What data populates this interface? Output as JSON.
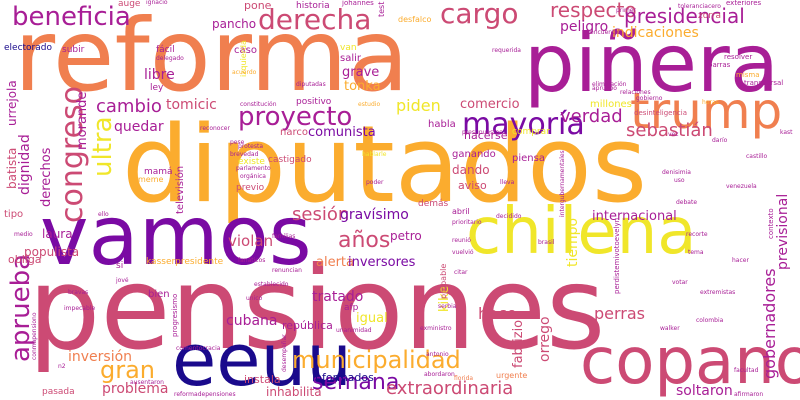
{
  "palette": {
    "dark_blue": "#1a0a8c",
    "purple": "#7a0aa3",
    "magenta": "#a81e96",
    "pink": "#cc4a74",
    "orange": "#f07f4f",
    "amber": "#fbac2e",
    "yellow": "#f0e62a"
  },
  "words": [
    {
      "text": "pensiones"
    },
    {
      "text": "diputados"
    },
    {
      "text": "reforma"
    },
    {
      "text": "vamos"
    },
    {
      "text": "piñera"
    },
    {
      "text": "chilena"
    },
    {
      "text": "copano"
    },
    {
      "text": "eeuu"
    },
    {
      "text": "trump"
    },
    {
      "text": "beneficia"
    },
    {
      "text": "derecha"
    },
    {
      "text": "cargo"
    },
    {
      "text": "respecto"
    },
    {
      "text": "presidencial"
    },
    {
      "text": "proyecto"
    },
    {
      "text": "mayoría"
    },
    {
      "text": "congreso"
    },
    {
      "text": "aprueba"
    },
    {
      "text": "ultra"
    },
    {
      "text": "municipalidad"
    },
    {
      "text": "semana"
    },
    {
      "text": "gran"
    },
    {
      "text": "años"
    },
    {
      "text": "sebastián"
    },
    {
      "text": "verdad"
    },
    {
      "text": "indicaciones"
    },
    {
      "text": "peligro"
    },
    {
      "text": "cambio"
    },
    {
      "text": "tomicic"
    },
    {
      "text": "piden"
    },
    {
      "text": "comercio"
    },
    {
      "text": "quedar"
    },
    {
      "text": "comunista"
    },
    {
      "text": "sesión"
    },
    {
      "text": "gravísimo"
    },
    {
      "text": "violan"
    },
    {
      "text": "alerta"
    },
    {
      "text": "inversores"
    },
    {
      "text": "tratado"
    },
    {
      "text": "cubana"
    },
    {
      "text": "hace"
    },
    {
      "text": "perras"
    },
    {
      "text": "extraordinaria"
    },
    {
      "text": "soltaron"
    },
    {
      "text": "internacional"
    },
    {
      "text": "gobernadores"
    },
    {
      "text": "previsional"
    },
    {
      "text": "tiempo"
    },
    {
      "text": "orrego"
    },
    {
      "text": "fabrizio"
    },
    {
      "text": "igual"
    },
    {
      "text": "inversión"
    },
    {
      "text": "problema"
    },
    {
      "text": "informados"
    },
    {
      "text": "inhabilita"
    },
    {
      "text": "dignidad"
    },
    {
      "text": "derechos"
    },
    {
      "text": "morande"
    },
    {
      "text": "batista"
    },
    {
      "text": "laura"
    },
    {
      "text": "urrejola"
    },
    {
      "text": "libre"
    },
    {
      "text": "grave"
    },
    {
      "text": "tonka"
    },
    {
      "text": "pancho"
    },
    {
      "text": "pone"
    },
    {
      "text": "historia"
    },
    {
      "text": "fácil"
    },
    {
      "text": "subir"
    },
    {
      "text": "electorado"
    },
    {
      "text": "auge"
    },
    {
      "text": "populista"
    },
    {
      "text": "obliga"
    },
    {
      "text": "kike"
    },
    {
      "text": "petro"
    },
    {
      "text": "dando"
    },
    {
      "text": "aviso"
    },
    {
      "text": "hacerse"
    },
    {
      "text": "habla"
    },
    {
      "text": "narco"
    },
    {
      "text": "televisión"
    },
    {
      "text": "mamá"
    },
    {
      "text": "tipo"
    },
    {
      "text": "ganando"
    },
    {
      "text": "piensa"
    },
    {
      "text": "república"
    },
    {
      "text": "instala"
    },
    {
      "text": "bien"
    },
    {
      "text": "salir"
    },
    {
      "text": "caso"
    },
    {
      "text": "ley"
    },
    {
      "text": "positivo"
    },
    {
      "text": "millones"
    },
    {
      "text": "demás"
    },
    {
      "text": "kasserpresidente"
    },
    {
      "text": "si"
    },
    {
      "text": "pasada"
    },
    {
      "text": "castigado"
    },
    {
      "text": "meme"
    },
    {
      "text": "previo"
    },
    {
      "text": "existe"
    },
    {
      "text": "izquierda"
    },
    {
      "text": "van"
    },
    {
      "text": "test"
    },
    {
      "text": "johannes"
    },
    {
      "text": "zorra"
    },
    {
      "text": "exteriores"
    },
    {
      "text": "resolver"
    },
    {
      "text": "barras"
    },
    {
      "text": "misma"
    },
    {
      "text": "transversal"
    },
    {
      "text": "encuentro"
    },
    {
      "text": "desfalco"
    },
    {
      "text": "probable"
    },
    {
      "text": "afp"
    },
    {
      "text": "comprar"
    },
    {
      "text": "abril"
    },
    {
      "text": "urgente"
    },
    {
      "text": "ignacio"
    },
    {
      "text": "delegado"
    },
    {
      "text": "constitución"
    },
    {
      "text": "reconocer"
    },
    {
      "text": "protesta"
    },
    {
      "text": "parlamento"
    },
    {
      "text": "orgánica"
    },
    {
      "text": "poder"
    },
    {
      "text": "hablarle"
    },
    {
      "text": "presupuestos"
    },
    {
      "text": "desinteligencia"
    },
    {
      "text": "intergubernamentales"
    },
    {
      "text": "eliminación"
    },
    {
      "text": "requerida"
    },
    {
      "text": "primer"
    },
    {
      "text": "toleranciacero"
    },
    {
      "text": "acuerdo"
    },
    {
      "text": "estudio"
    },
    {
      "text": "apruebo"
    },
    {
      "text": "diputadas"
    },
    {
      "text": "gobierno"
    },
    {
      "text": "vez"
    },
    {
      "text": "darío"
    },
    {
      "text": "kast"
    },
    {
      "text": "castillo"
    },
    {
      "text": "uso"
    },
    {
      "text": "contexto"
    },
    {
      "text": "venezuela"
    },
    {
      "text": "denisimia"
    },
    {
      "text": "recorte"
    },
    {
      "text": "hacer"
    },
    {
      "text": "tema"
    },
    {
      "text": "brasil"
    },
    {
      "text": "decidido"
    },
    {
      "text": "prioritario"
    },
    {
      "text": "reunió"
    },
    {
      "text": "vuelvió"
    },
    {
      "text": "perdistemivotoevelyn"
    },
    {
      "text": "votar"
    },
    {
      "text": "extremistas"
    },
    {
      "text": "walker"
    },
    {
      "text": "colombia"
    },
    {
      "text": "facultad"
    },
    {
      "text": "afirmaron"
    },
    {
      "text": "serbia"
    },
    {
      "text": "citar"
    },
    {
      "text": "unanimidad"
    },
    {
      "text": "exministro"
    },
    {
      "text": "fanáticos"
    },
    {
      "text": "familias"
    },
    {
      "text": "renuncian"
    },
    {
      "text": "establecido"
    },
    {
      "text": "comentocracia"
    },
    {
      "text": "ausentaron"
    },
    {
      "text": "reformadepensiones"
    },
    {
      "text": "bravas"
    },
    {
      "text": "impecable"
    },
    {
      "text": "conmapensiono"
    },
    {
      "text": "jové"
    },
    {
      "text": "abordaron"
    },
    {
      "text": "florida"
    },
    {
      "text": "desempeñar"
    },
    {
      "text": "progresismo"
    },
    {
      "text": "medio"
    },
    {
      "text": "ello"
    },
    {
      "text": "pese"
    },
    {
      "text": "brevedad"
    },
    {
      "text": "unico"
    },
    {
      "text": "lleva"
    },
    {
      "text": "debate"
    },
    {
      "text": "relaciones"
    },
    {
      "text": "horas"
    },
    {
      "text": "antonio"
    },
    {
      "text": "n2"
    }
  ]
}
